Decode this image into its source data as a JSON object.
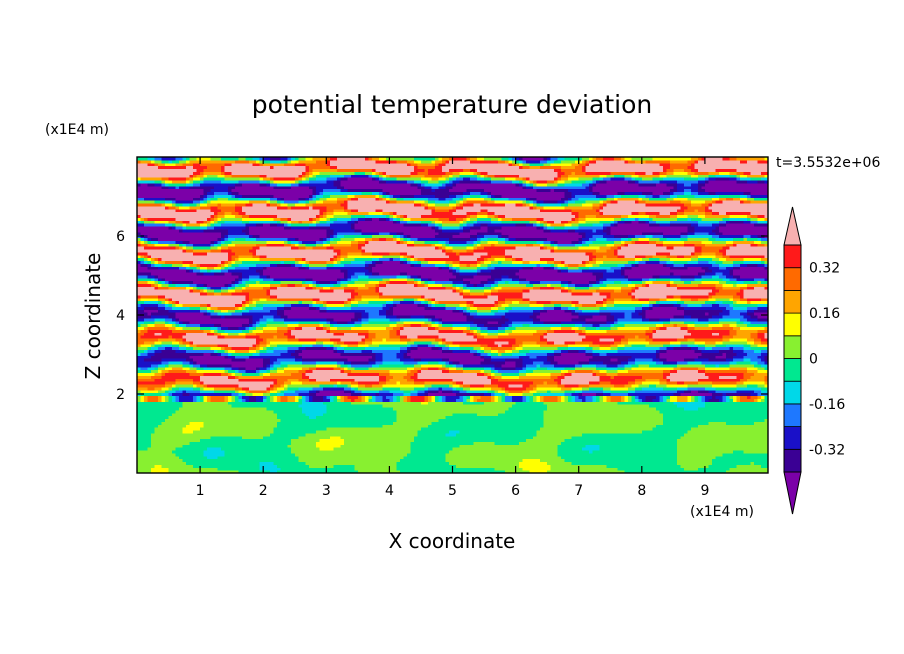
{
  "chart_data": {
    "type": "heatmap",
    "title": "potential temperature deviation",
    "xlabel": "X coordinate",
    "ylabel": "Z coordinate",
    "x_unit": "(x1E4 m)",
    "y_unit": "(x1E4 m)",
    "time_label": "t=3.5532e+06",
    "xlim": [
      0,
      10
    ],
    "ylim": [
      0,
      8
    ],
    "x_ticks": [
      1,
      2,
      3,
      4,
      5,
      6,
      7,
      8,
      9
    ],
    "y_ticks": [
      2,
      4,
      6
    ],
    "colorbar": {
      "levels": [
        -0.4,
        -0.32,
        -0.24,
        -0.16,
        -0.08,
        0,
        0.08,
        0.16,
        0.24,
        0.32,
        0.4
      ],
      "labeled_levels": [
        "0.32",
        "0.16",
        "0",
        "-0.16",
        "-0.32"
      ],
      "colors_low_to_high": [
        "#7b00a8",
        "#3a0094",
        "#1a10c8",
        "#1e78ff",
        "#00d8e8",
        "#00e890",
        "#88f030",
        "#ffff00",
        "#ffa500",
        "#ff6a00",
        "#ff1a1a",
        "#f8b0b0"
      ],
      "extend": "both"
    },
    "field_description_bands": [
      {
        "z_range": [
          0,
          1.95
        ],
        "dominant_values": [
          -0.04,
          0.04
        ]
      },
      {
        "z_range": [
          1.95,
          4.2
        ],
        "dominant_values": [
          -0.4,
          0.4
        ]
      },
      {
        "z_range": [
          4.2,
          8
        ],
        "dominant_values": [
          -0.45,
          0.45
        ]
      }
    ]
  }
}
